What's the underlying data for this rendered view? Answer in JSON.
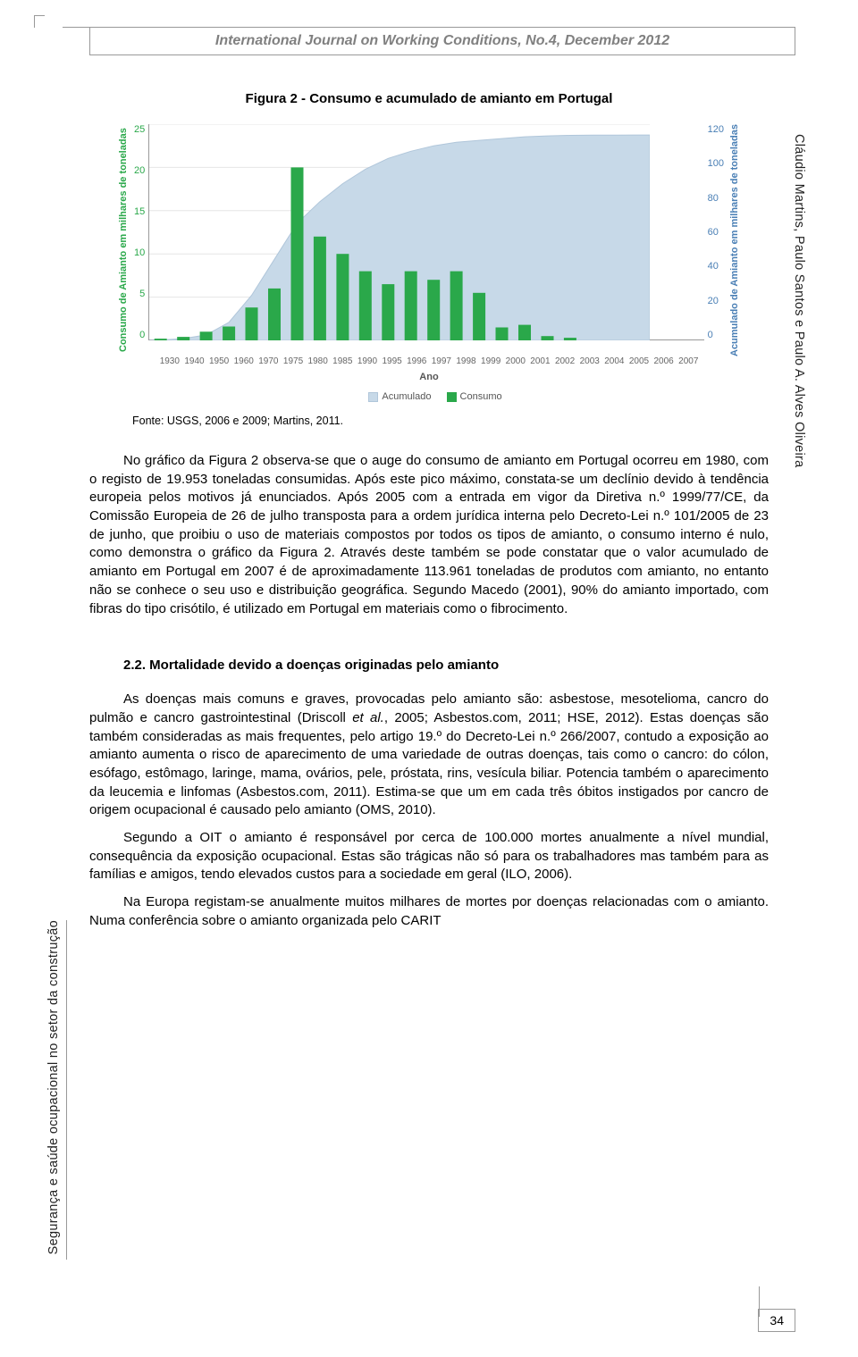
{
  "header": {
    "journal_line": "International Journal on Working Conditions, No.4, December 2012"
  },
  "figure": {
    "title": "Figura 2 - Consumo e acumulado de amianto em Portugal",
    "source": "Fonte: USGS, 2006 e 2009; Martins, 2011.",
    "type": "bar+area",
    "ylabel_left": "Consumo de Amianto em milhares de toneladas",
    "ylabel_right": "Acumulado de Amianto em milhares de toneladas",
    "xlabel": "Ano",
    "legend_acumulado": "Acumulado",
    "legend_consumo": "Consumo",
    "categories": [
      "1930",
      "1940",
      "1950",
      "1960",
      "1970",
      "1975",
      "1980",
      "1985",
      "1990",
      "1995",
      "1996",
      "1997",
      "1998",
      "1999",
      "2000",
      "2001",
      "2002",
      "2003",
      "2004",
      "2005",
      "2006",
      "2007"
    ],
    "consumo_values": [
      0.2,
      0.4,
      1.0,
      1.6,
      3.8,
      6.0,
      20.0,
      12.0,
      10.0,
      8.0,
      6.5,
      8.0,
      7.0,
      8.0,
      5.5,
      1.5,
      1.8,
      0.5,
      0.3,
      0.0,
      0.0,
      0.0
    ],
    "acumulado_values": [
      0.2,
      1,
      3,
      10,
      25,
      45,
      65,
      77,
      87,
      95,
      101,
      105,
      108,
      110,
      111,
      112,
      113,
      113.5,
      113.8,
      113.9,
      113.95,
      114
    ],
    "y_left": {
      "min": 0,
      "max": 25,
      "ticks": [
        0,
        5,
        10,
        15,
        20,
        25
      ]
    },
    "y_right": {
      "min": 0,
      "max": 120,
      "ticks": [
        0,
        20,
        40,
        60,
        80,
        100,
        120
      ]
    },
    "colors": {
      "bar": "#2aa84a",
      "area": "#c7d9e8",
      "area_stroke": "#b0c6da",
      "left_axis_text": "#2aa84a",
      "right_axis_text": "#4a7fb5",
      "grid": "#e6e6e6",
      "background": "#ffffff"
    },
    "bar_width_ratio": 0.55,
    "axis_fontsize": 11,
    "tick_fontsize": 10
  },
  "paragraphs": {
    "p1": "No gráfico da Figura 2 observa-se que o auge do consumo de amianto em Portugal ocorreu em 1980, com o registo de 19.953 toneladas consumidas. Após este pico máximo, constata-se um declínio devido à tendência europeia pelos motivos já enunciados. Após 2005 com a entrada em vigor da Diretiva n.º 1999/77/CE, da Comissão Europeia de 26 de julho transposta para a ordem jurídica interna pelo Decreto-Lei n.º 101/2005 de 23 de junho, que proibiu o uso de materiais compostos por todos os tipos de amianto, o consumo interno é nulo, como demonstra o gráfico da Figura 2. Através deste também se pode constatar que o valor acumulado de amianto em Portugal em 2007 é de aproximadamente 113.961 toneladas de produtos com amianto, no entanto não se conhece o seu uso e distribuição geográfica. Segundo Macedo (2001), 90% do amianto importado, com fibras do tipo crisótilo, é utilizado em Portugal em materiais como o fibrocimento.",
    "h2": "2.2. Mortalidade devido a doenças originadas pelo amianto",
    "p2_html": "As doenças mais comuns e graves, provocadas pelo amianto são: asbestose, mesotelioma, cancro do pulmão e cancro gastrointestinal (Driscoll <em>et al.</em>, 2005; Asbestos.com, 2011; HSE, 2012). Estas doenças são também consideradas as mais frequentes, pelo artigo 19.º do Decreto-Lei n.º 266/2007, contudo a exposição ao amianto aumenta o risco de aparecimento de uma variedade de outras doenças, tais como o cancro: do cólon, esófago, estômago, laringe, mama, ovários, pele, próstata, rins, vesícula biliar. Potencia também o aparecimento da leucemia e linfomas (Asbestos.com, 2011). Estima-se que um em cada três óbitos instigados por cancro de origem ocupacional é causado pelo amianto (OMS, 2010).",
    "p3": "Segundo a OIT o amianto é responsável por cerca de 100.000 mortes anualmente a nível mundial, consequência da exposição ocupacional. Estas são trágicas não só para os trabalhadores mas também para as famílias e amigos, tendo elevados custos para a sociedade em geral (ILO, 2006).",
    "p4": "Na Europa registam-se anualmente muitos milhares de mortes por doenças relacionadas com o amianto. Numa conferência sobre o amianto organizada pelo CARIT"
  },
  "margins": {
    "authors": "Cláudio Martins, Paulo Santos e Paulo A. Alves Oliveira",
    "topic": "Segurança e saúde ocupacional no setor da construção"
  },
  "footer": {
    "page_number": "34"
  }
}
